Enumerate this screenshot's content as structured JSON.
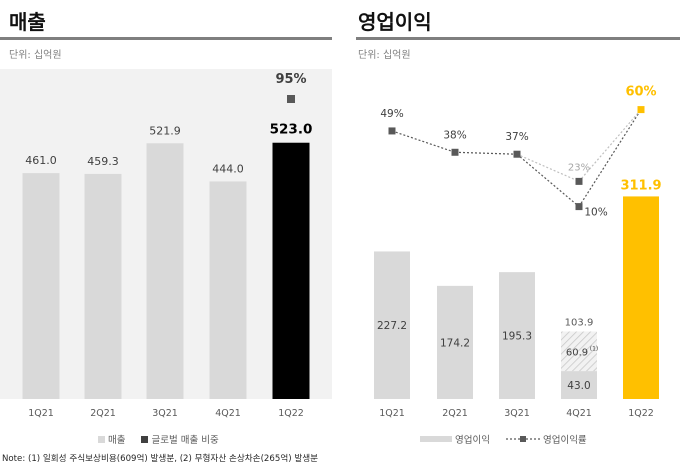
{
  "footnote": "Note: (1) 일회성 주식보상비용(609억) 발생분, (2) 무형자산 손상차손(265억) 발생분",
  "chart_data": [
    {
      "type": "bar",
      "title": "매출",
      "unit": "단위: 십억원",
      "categories": [
        "1Q21",
        "2Q21",
        "3Q21",
        "4Q21",
        "1Q22"
      ],
      "series": [
        {
          "name": "매출",
          "values": [
            461.0,
            459.3,
            521.9,
            444.0,
            523.0
          ],
          "labels": [
            "461.0",
            "459.3",
            "521.9",
            "444.0",
            "523.0"
          ],
          "color": "#d9d9d9",
          "highlight_color": "#000000"
        },
        {
          "name": "글로벌 매출 비중",
          "type": "marker",
          "values": [
            null,
            null,
            null,
            null,
            95
          ],
          "labels": [
            "",
            "",
            "",
            "",
            "95%"
          ],
          "color": "#595959"
        }
      ],
      "ylim": [
        0,
        700
      ],
      "grid": false,
      "legend": "bottom"
    },
    {
      "type": "bar",
      "title": "영업이익",
      "unit": "단위: 십억원",
      "categories": [
        "1Q21",
        "2Q21",
        "3Q21",
        "4Q21",
        "1Q22"
      ],
      "series": [
        {
          "name": "영업이익",
          "values": [
            227.2,
            174.2,
            195.3,
            43.0,
            311.9
          ],
          "labels": [
            "227.2",
            "174.2",
            "195.3",
            "43.0",
            "311.9"
          ],
          "color": "#d9d9d9",
          "highlight_color": "#ffc000"
        },
        {
          "name": "영업이익률",
          "type": "line",
          "values": [
            49,
            38,
            37,
            10,
            60
          ],
          "labels": [
            "49%",
            "38%",
            "37%",
            "10%",
            "60%"
          ],
          "color": "#595959"
        }
      ],
      "annotations": {
        "stacked_4Q21": {
          "total": 103.9,
          "total_label": "103.9",
          "one_off": 60.9,
          "one_off_label": "60.9",
          "one_off_note": "(1)"
        },
        "adjusted_margin_4Q21": {
          "value": 23,
          "label": "23%"
        }
      },
      "ylim": [
        0,
        700
      ],
      "grid": false,
      "legend": "bottom"
    }
  ]
}
